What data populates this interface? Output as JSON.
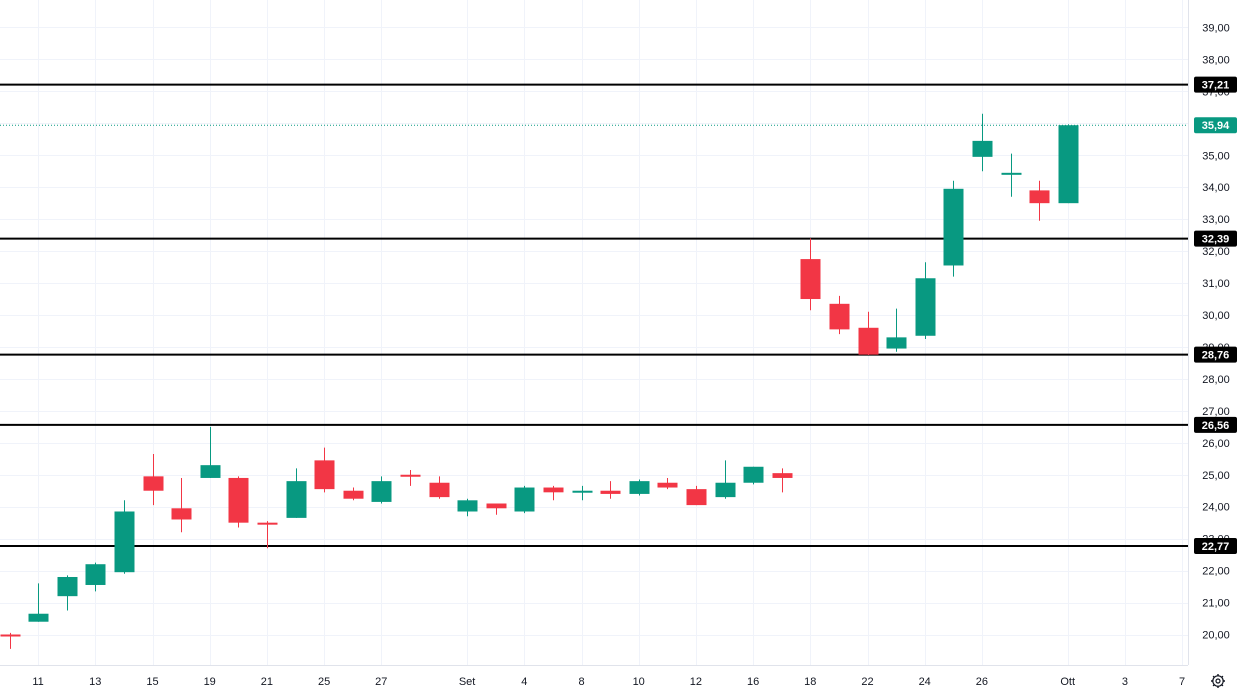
{
  "chart_data": {
    "type": "candlestick",
    "y_axis": {
      "ticks": [
        "20,00",
        "21,00",
        "22,00",
        "23,00",
        "24,00",
        "25,00",
        "26,00",
        "27,00",
        "28,00",
        "29,00",
        "30,00",
        "31,00",
        "32,00",
        "33,00",
        "34,00",
        "35,00",
        "36,00",
        "37,00",
        "38,00",
        "39,00"
      ],
      "ylim": [
        19.3,
        39.5
      ],
      "position": "right"
    },
    "x_axis": {
      "labels": [
        {
          "text": "11",
          "index": 1
        },
        {
          "text": "13",
          "index": 3
        },
        {
          "text": "15",
          "index": 5
        },
        {
          "text": "19",
          "index": 7
        },
        {
          "text": "21",
          "index": 9
        },
        {
          "text": "25",
          "index": 11
        },
        {
          "text": "27",
          "index": 13
        },
        {
          "text": "Set",
          "index": 16
        },
        {
          "text": "4",
          "index": 18
        },
        {
          "text": "8",
          "index": 20
        },
        {
          "text": "10",
          "index": 22
        },
        {
          "text": "12",
          "index": 24
        },
        {
          "text": "16",
          "index": 26
        },
        {
          "text": "18",
          "index": 28
        },
        {
          "text": "22",
          "index": 30
        },
        {
          "text": "24",
          "index": 32
        },
        {
          "text": "26",
          "index": 34
        },
        {
          "text": "Ott",
          "index": 37
        },
        {
          "text": "3",
          "index": 39
        },
        {
          "text": "7",
          "index": 41
        }
      ]
    },
    "candles": [
      {
        "o": 20.0,
        "h": 20.05,
        "l": 19.55,
        "c": 19.95
      },
      {
        "o": 20.4,
        "h": 21.6,
        "l": 20.4,
        "c": 20.65
      },
      {
        "o": 21.2,
        "h": 21.85,
        "l": 20.75,
        "c": 21.8
      },
      {
        "o": 21.55,
        "h": 22.25,
        "l": 21.35,
        "c": 22.2
      },
      {
        "o": 21.95,
        "h": 24.2,
        "l": 21.9,
        "c": 23.85
      },
      {
        "o": 24.95,
        "h": 25.65,
        "l": 24.05,
        "c": 24.5
      },
      {
        "o": 23.95,
        "h": 24.9,
        "l": 23.2,
        "c": 23.6
      },
      {
        "o": 24.9,
        "h": 26.5,
        "l": 24.9,
        "c": 25.3
      },
      {
        "o": 24.9,
        "h": 24.95,
        "l": 23.35,
        "c": 23.5
      },
      {
        "o": 23.5,
        "h": 23.55,
        "l": 22.7,
        "c": 23.45
      },
      {
        "o": 23.65,
        "h": 25.2,
        "l": 23.65,
        "c": 24.8
      },
      {
        "o": 25.45,
        "h": 25.85,
        "l": 24.45,
        "c": 24.55
      },
      {
        "o": 24.5,
        "h": 24.6,
        "l": 24.2,
        "c": 24.25
      },
      {
        "o": 24.15,
        "h": 24.95,
        "l": 24.1,
        "c": 24.8
      },
      {
        "o": 25.0,
        "h": 25.15,
        "l": 24.65,
        "c": 24.95
      },
      {
        "o": 24.75,
        "h": 24.95,
        "l": 24.25,
        "c": 24.3
      },
      {
        "o": 23.85,
        "h": 24.25,
        "l": 23.7,
        "c": 24.2
      },
      {
        "o": 24.1,
        "h": 24.1,
        "l": 23.75,
        "c": 23.95
      },
      {
        "o": 23.85,
        "h": 24.65,
        "l": 23.8,
        "c": 24.6
      },
      {
        "o": 24.6,
        "h": 24.65,
        "l": 24.2,
        "c": 24.45
      },
      {
        "o": 24.45,
        "h": 24.65,
        "l": 24.2,
        "c": 24.5
      },
      {
        "o": 24.5,
        "h": 24.8,
        "l": 24.25,
        "c": 24.4
      },
      {
        "o": 24.4,
        "h": 24.85,
        "l": 24.35,
        "c": 24.8
      },
      {
        "o": 24.75,
        "h": 24.9,
        "l": 24.55,
        "c": 24.6
      },
      {
        "o": 24.55,
        "h": 24.65,
        "l": 24.05,
        "c": 24.05
      },
      {
        "o": 24.3,
        "h": 25.45,
        "l": 24.25,
        "c": 24.75
      },
      {
        "o": 24.75,
        "h": 25.25,
        "l": 24.7,
        "c": 25.25
      },
      {
        "o": 25.05,
        "h": 25.2,
        "l": 24.45,
        "c": 24.9
      },
      {
        "o": 31.75,
        "h": 32.4,
        "l": 30.15,
        "c": 30.5
      },
      {
        "o": 30.35,
        "h": 30.6,
        "l": 29.4,
        "c": 29.55
      },
      {
        "o": 29.6,
        "h": 30.1,
        "l": 28.75,
        "c": 28.76
      },
      {
        "o": 28.95,
        "h": 30.2,
        "l": 28.85,
        "c": 29.3
      },
      {
        "o": 29.35,
        "h": 31.65,
        "l": 29.25,
        "c": 31.15
      },
      {
        "o": 31.55,
        "h": 34.2,
        "l": 31.2,
        "c": 33.95
      },
      {
        "o": 34.95,
        "h": 36.3,
        "l": 34.5,
        "c": 35.45
      },
      {
        "o": 34.45,
        "h": 35.05,
        "l": 33.7,
        "c": 34.45
      },
      {
        "o": 33.9,
        "h": 34.2,
        "l": 32.95,
        "c": 33.5
      },
      {
        "o": 33.5,
        "h": 35.97,
        "l": 33.5,
        "c": 35.94
      }
    ],
    "levels": [
      {
        "value": 37.21,
        "label": "37,21"
      },
      {
        "value": 32.39,
        "label": "32,39"
      },
      {
        "value": 28.76,
        "label": "28,76"
      },
      {
        "value": 26.56,
        "label": "26,56"
      },
      {
        "value": 22.77,
        "label": "22,77"
      }
    ],
    "last_price": {
      "value": 35.94,
      "label": "35,94"
    },
    "colors": {
      "up": "#089981",
      "down": "#f23645",
      "level": "#000000",
      "grid": "#f0f3fa",
      "text": "#131722"
    },
    "grid": true
  },
  "settings_icon": "gear-icon"
}
